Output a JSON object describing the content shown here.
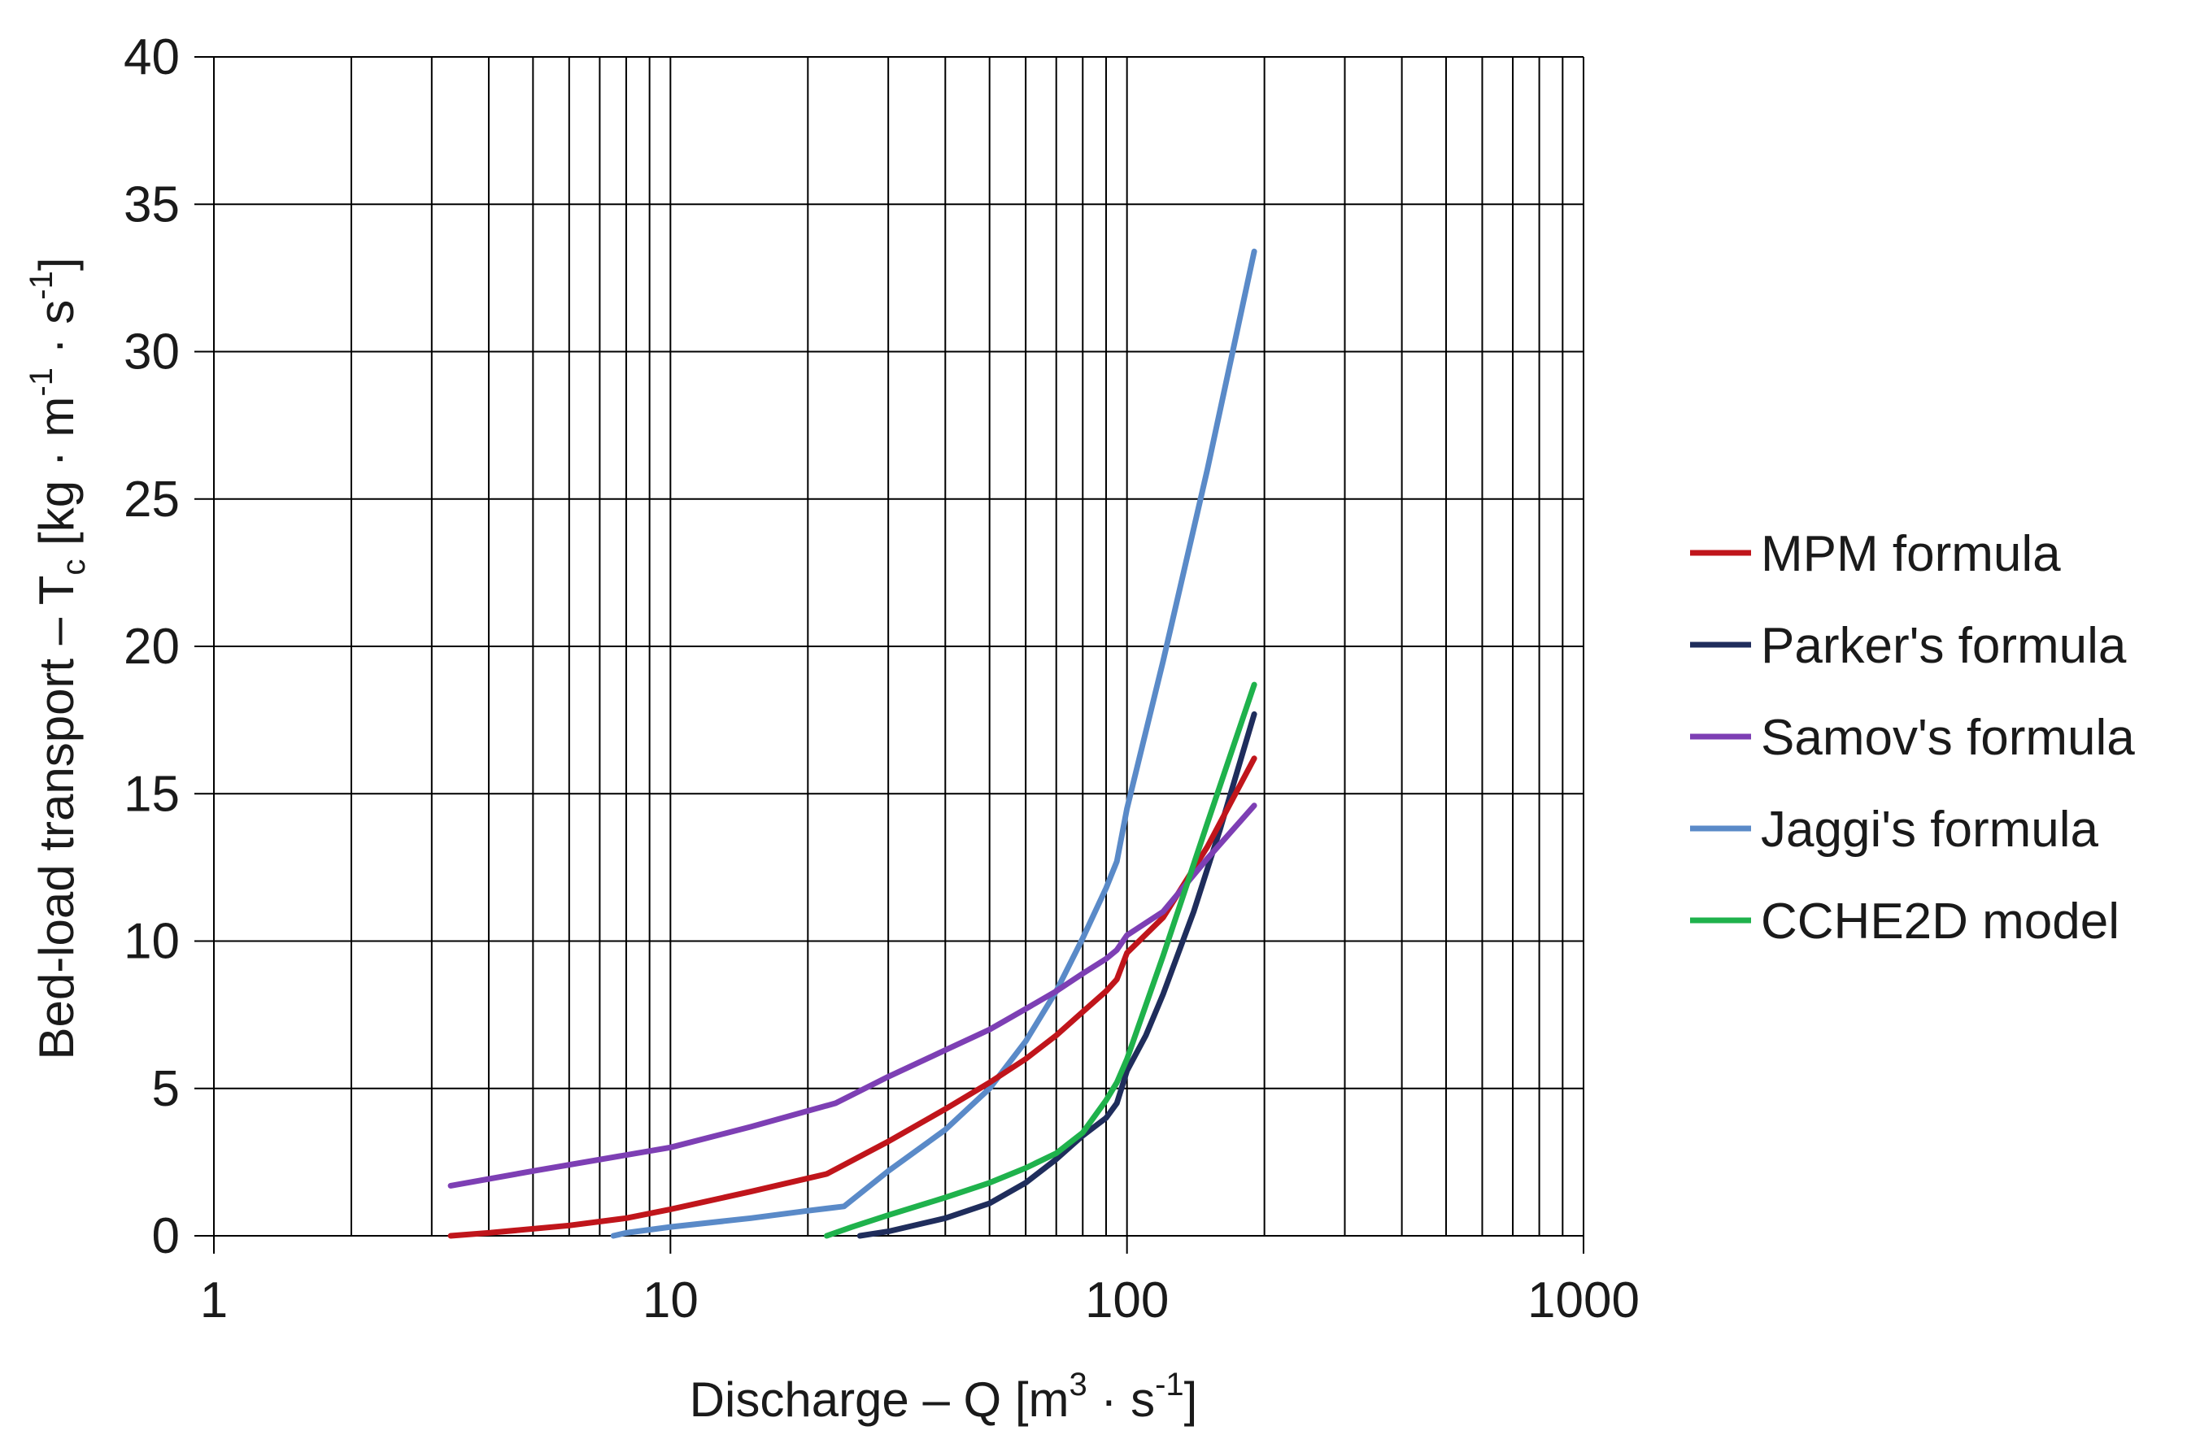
{
  "chart_data": {
    "type": "line",
    "title": "",
    "xlabel": "Discharge – Q [m³ · s⁻¹]",
    "xlabel_parts": {
      "main": "Discharge – Q [m",
      "sup1": "3",
      "mid": " · s",
      "sup2": "-1",
      "end": "]"
    },
    "ylabel": "Bed-load  transport –  Tᴄ [kg · m⁻¹ · s⁻¹]",
    "ylabel_parts": {
      "main": "Bed-load  transport –  T",
      "sub": "c",
      "mid1": " [kg · m",
      "sup1": "-1",
      "mid2": " · s",
      "sup2": "-1",
      "end": "]"
    },
    "xscale": "log",
    "xlim": [
      1,
      1000
    ],
    "ylim": [
      0,
      40
    ],
    "x_ticks": [
      1,
      10,
      100,
      1000
    ],
    "x_tick_labels": [
      "1",
      "10",
      "100",
      "1000"
    ],
    "y_ticks": [
      0,
      5,
      10,
      15,
      20,
      25,
      30,
      35,
      40
    ],
    "y_tick_labels": [
      "0",
      "5",
      "10",
      "15",
      "20",
      "25",
      "30",
      "35",
      "40"
    ],
    "grid": true,
    "legend_position": "right",
    "series": [
      {
        "name": "MPM formula",
        "color": "#c0151b",
        "x": [
          3.3,
          4,
          6,
          8,
          10,
          15,
          22,
          30,
          40,
          50,
          60,
          70,
          80,
          90,
          95,
          100,
          120,
          150,
          190
        ],
        "y": [
          0,
          0.1,
          0.35,
          0.6,
          0.9,
          1.5,
          2.1,
          3.2,
          4.3,
          5.2,
          6.0,
          6.8,
          7.6,
          8.3,
          8.7,
          9.6,
          10.8,
          13.2,
          16.2
        ]
      },
      {
        "name": "Parker's formula",
        "color": "#1f2d5c",
        "x": [
          26,
          30,
          40,
          50,
          60,
          70,
          80,
          90,
          95,
          100,
          110,
          120,
          140,
          160,
          190
        ],
        "y": [
          0,
          0.15,
          0.6,
          1.1,
          1.8,
          2.6,
          3.4,
          4.0,
          4.5,
          5.6,
          6.8,
          8.2,
          11.0,
          13.8,
          17.7
        ]
      },
      {
        "name": "Samov's formula",
        "color": "#7d3fb4",
        "x": [
          3.3,
          5,
          10,
          15,
          23,
          30,
          40,
          50,
          60,
          70,
          80,
          90,
          95,
          100,
          120,
          150,
          190
        ],
        "y": [
          1.7,
          2.2,
          3.0,
          3.7,
          4.5,
          5.4,
          6.3,
          7.0,
          7.7,
          8.3,
          8.9,
          9.4,
          9.7,
          10.2,
          11.0,
          12.8,
          14.6
        ]
      },
      {
        "name": "Jaggi's formula",
        "color": "#5a8ac8",
        "x": [
          7.5,
          8,
          10,
          15,
          20,
          24,
          30,
          40,
          50,
          60,
          70,
          80,
          90,
          95,
          100,
          120,
          150,
          190
        ],
        "y": [
          0,
          0.1,
          0.3,
          0.6,
          0.85,
          1.0,
          2.2,
          3.6,
          5.0,
          6.6,
          8.3,
          10.1,
          11.8,
          12.7,
          14.5,
          19.5,
          26.0,
          33.4
        ]
      },
      {
        "name": "CCHE2D model",
        "color": "#1fb24c",
        "x": [
          22,
          25,
          30,
          40,
          50,
          60,
          70,
          80,
          90,
          95,
          100,
          120,
          150,
          190
        ],
        "y": [
          0,
          0.3,
          0.7,
          1.3,
          1.8,
          2.3,
          2.8,
          3.5,
          4.6,
          5.2,
          6.0,
          9.5,
          14.0,
          18.7
        ]
      }
    ]
  }
}
